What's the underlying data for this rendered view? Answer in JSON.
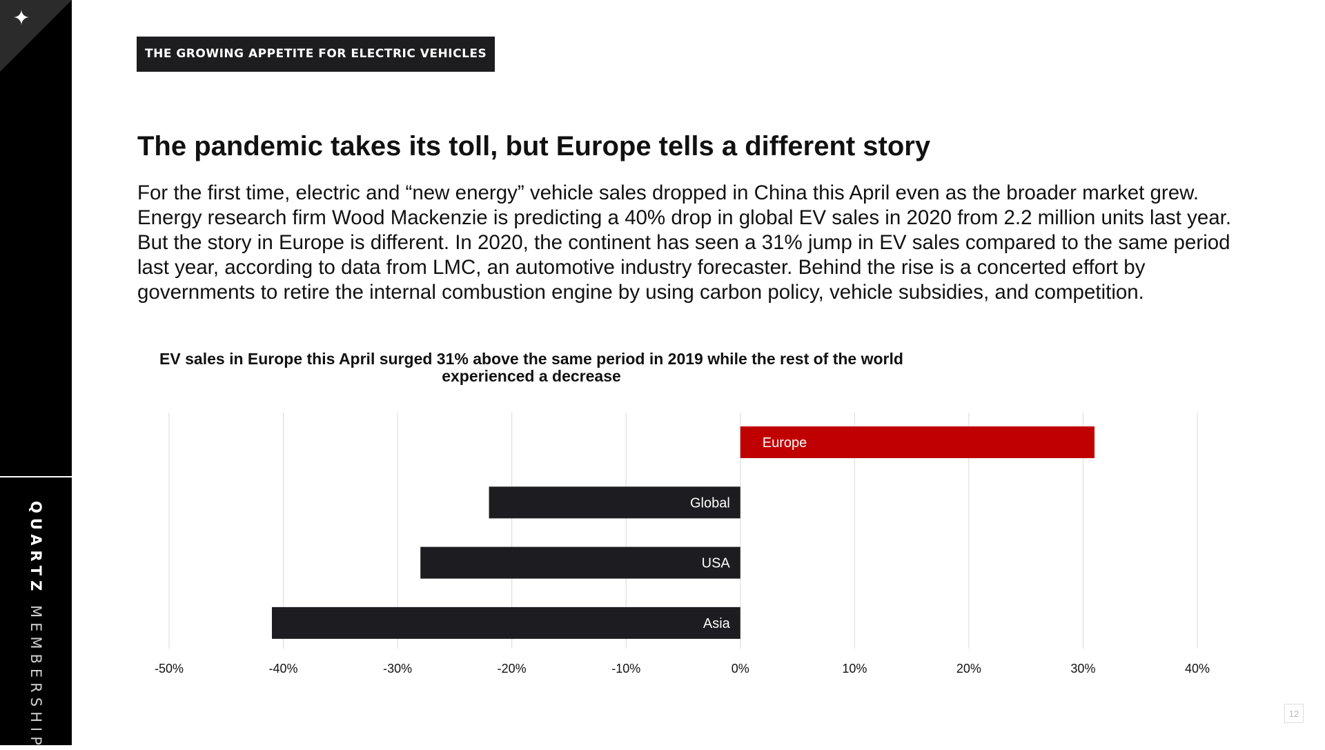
{
  "sidebar": {
    "brand_bold": "QUARTZ",
    "brand_light": "MEMBERSHIP",
    "corner_icon": "sparkle-icon"
  },
  "header": {
    "section_tag": "THE GROWING APPETITE FOR ELECTRIC VEHICLES",
    "headline": "The pandemic takes its toll, but Europe tells a different story"
  },
  "body": {
    "paragraph": "For the first time, electric and “new energy” vehicle sales dropped in China this April even as the broader market grew. Energy research firm Wood Mackenzie is predicting a 40% drop in global EV sales in 2020 from 2.2 million units last year. But the story in Europe is different. In 2020, the continent has seen a 31% jump in EV sales compared to the same period last year, according to data from LMC, an automotive industry forecaster. Behind the rise is a concerted effort by governments to retire the internal combustion engine by using carbon policy, vehicle subsidies, and competition."
  },
  "chart_data": {
    "type": "bar",
    "orientation": "horizontal",
    "title": "EV sales in Europe this April surged 31% above the same period in 2019 while the rest of the world experienced a decrease",
    "categories": [
      "Europe",
      "Global",
      "USA",
      "Asia"
    ],
    "values": [
      31,
      -22,
      -28,
      -41
    ],
    "xlim": [
      -50,
      40
    ],
    "x_ticks": [
      -50,
      -40,
      -30,
      -20,
      -10,
      0,
      10,
      20,
      30,
      40
    ],
    "x_tick_labels": [
      "-50%",
      "-40%",
      "-30%",
      "-20%",
      "-10%",
      "0%",
      "10%",
      "20%",
      "30%",
      "40%"
    ],
    "grid": true,
    "legend": "none",
    "colors": {
      "highlight": "#c00000",
      "default": "#1d1d21",
      "grid": "#d9d9d9"
    }
  },
  "page_number": "12"
}
